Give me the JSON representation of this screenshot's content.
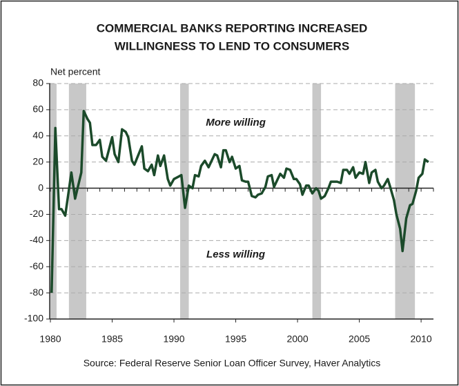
{
  "chart_data": {
    "type": "line",
    "title": [
      "COMMERCIAL BANKS REPORTING INCREASED",
      "WILLINGNESS TO LEND TO CONSUMERS"
    ],
    "ylabel": "Net percent",
    "source": "Source: Federal Reserve Senior Loan Officer Survey, Haver Analytics",
    "annotations": [
      {
        "text": "More willing",
        "x": 1995,
        "y": 50
      },
      {
        "text": "Less willing",
        "x": 1995,
        "y": -51
      }
    ],
    "xlim": [
      1980,
      2011
    ],
    "xticks": [
      1980,
      1985,
      1990,
      1995,
      2000,
      2005,
      2010
    ],
    "ylim": [
      -100,
      80
    ],
    "yticks": [
      -100,
      -80,
      -60,
      -40,
      -20,
      0,
      20,
      40,
      60,
      80
    ],
    "grid": true,
    "shaded_periods": [
      [
        1980.0,
        1980.5
      ],
      [
        1981.5,
        1982.9
      ],
      [
        1990.5,
        1991.2
      ],
      [
        2001.2,
        2001.9
      ],
      [
        2007.9,
        2009.5
      ]
    ],
    "shade_color": "#c8c8c8",
    "series": [
      {
        "color": "#1b4a2a",
        "x": [
          1980.1,
          1980.4,
          1980.7,
          1980.9,
          1981.2,
          1981.7,
          1982.0,
          1982.5,
          1982.7,
          1983.0,
          1983.2,
          1983.4,
          1983.7,
          1984.0,
          1984.2,
          1984.5,
          1984.7,
          1985.0,
          1985.2,
          1985.5,
          1985.8,
          1986.1,
          1986.3,
          1986.6,
          1986.8,
          1987.1,
          1987.4,
          1987.6,
          1987.9,
          1988.2,
          1988.4,
          1988.7,
          1988.9,
          1989.2,
          1989.5,
          1989.7,
          1990.0,
          1990.2,
          1990.6,
          1990.9,
          1991.2,
          1991.5,
          1991.7,
          1992.0,
          1992.2,
          1992.5,
          1992.8,
          1993.0,
          1993.3,
          1993.5,
          1993.8,
          1994.0,
          1994.2,
          1994.5,
          1994.7,
          1995.0,
          1995.3,
          1995.5,
          1995.8,
          1996.0,
          1996.3,
          1996.6,
          1996.8,
          1997.1,
          1997.4,
          1997.6,
          1997.9,
          1998.1,
          1998.4,
          1998.6,
          1998.9,
          1999.1,
          1999.4,
          1999.7,
          1999.9,
          2000.2,
          2000.4,
          2000.7,
          2000.9,
          2001.2,
          2001.5,
          2001.7,
          2001.9,
          2002.2,
          2002.5,
          2002.7,
          2003.0,
          2003.2,
          2003.5,
          2003.7,
          2004.0,
          2004.2,
          2004.5,
          2004.7,
          2005.0,
          2005.3,
          2005.5,
          2005.8,
          2006.0,
          2006.3,
          2006.5,
          2006.8,
          2007.0,
          2007.3,
          2007.5,
          2007.8,
          2008.0,
          2008.3,
          2008.5,
          2008.8,
          2009.1,
          2009.3,
          2009.6,
          2009.8,
          2010.1,
          2010.3,
          2010.6
        ],
        "values": [
          -80,
          46,
          -16,
          -16,
          -21,
          12,
          -8,
          12,
          59,
          53,
          50,
          33,
          33,
          37,
          24,
          21,
          28,
          39,
          26,
          20,
          45,
          43,
          39,
          21,
          18,
          25,
          32,
          15,
          13,
          18,
          10,
          25,
          17,
          25,
          7,
          2,
          7,
          8,
          10,
          -15,
          2,
          0,
          10,
          9,
          17,
          21,
          16,
          20,
          26,
          25,
          16,
          29,
          29,
          20,
          24,
          15,
          17,
          6,
          5,
          5,
          -6,
          -7,
          -5,
          -4,
          1,
          9,
          10,
          1,
          7,
          11,
          8,
          15,
          14,
          7,
          7,
          3,
          -5,
          2,
          2,
          -4,
          0,
          -2,
          -8,
          -6,
          0,
          5,
          5,
          5,
          4,
          14,
          14,
          11,
          16,
          8,
          12,
          11,
          20,
          4,
          12,
          14,
          5,
          0,
          2,
          7,
          1,
          -9,
          -20,
          -31,
          -48,
          -23,
          -13,
          -12,
          -2,
          8,
          11,
          22,
          20
        ]
      }
    ]
  }
}
